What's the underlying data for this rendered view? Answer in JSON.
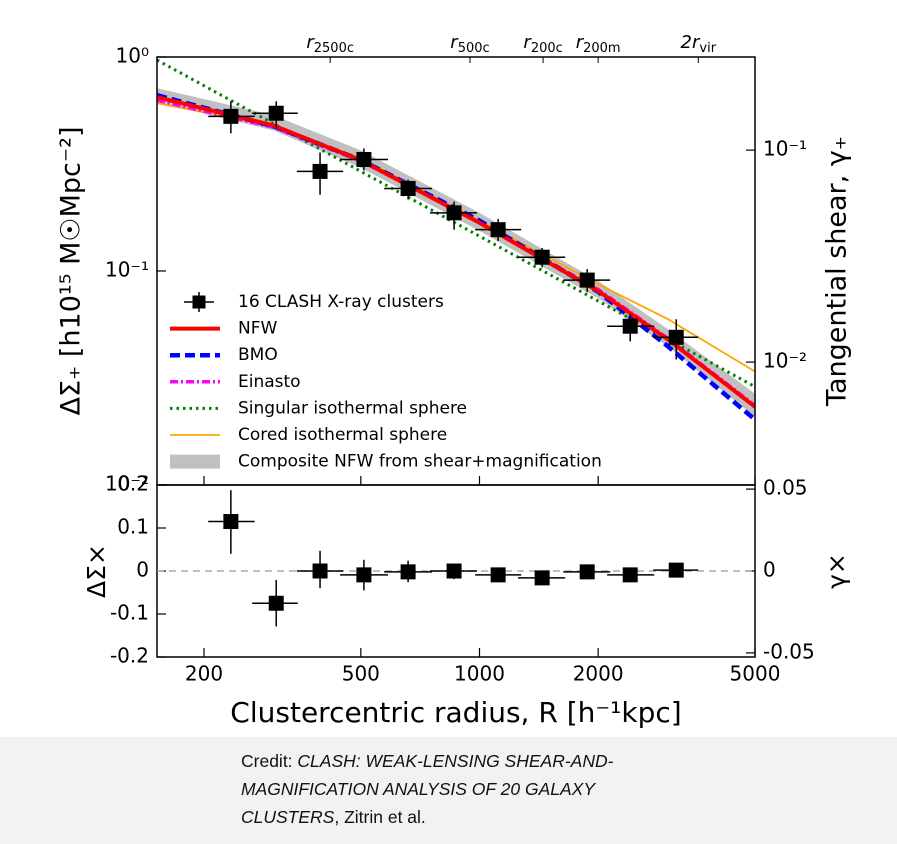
{
  "chart_data": [
    {
      "type": "line",
      "xscale": "log",
      "yscale": "log",
      "xlim": [
        152,
        5000
      ],
      "ylim": [
        0.01,
        1
      ],
      "yticks": [
        {
          "value": 1,
          "label": "10⁰"
        },
        {
          "value": 0.1,
          "label": "10⁻¹"
        },
        {
          "value": 0.01,
          "label": "10⁻²"
        }
      ],
      "y2lim": [
        0.00263,
        0.275
      ],
      "y2ticks": [
        {
          "value": 0.1,
          "label": "10⁻¹"
        },
        {
          "value": 0.01,
          "label": "10⁻²"
        }
      ],
      "ylabel": "ΔΣ₊ [h10¹⁵ M☉Mpc⁻²]",
      "y2label": "Tangential shear, γ₊",
      "top_ticks": [
        {
          "value": 418,
          "label": "r",
          "subscript": "2500c"
        },
        {
          "value": 946,
          "label": "r",
          "subscript": "500c"
        },
        {
          "value": 1450,
          "label": "r",
          "subscript": "200c"
        },
        {
          "value": 2000,
          "label": "r",
          "subscript": "200m"
        },
        {
          "value": 3590,
          "label": "2r",
          "subscript": "vir"
        }
      ],
      "legend": "lower left",
      "series": [
        {
          "name": "16 CLASH X-ray clusters",
          "color": "#000000",
          "style": "errorbar",
          "x": [
            234,
            305,
            394,
            509,
            659,
            862,
            1115,
            1442,
            1876,
            2412,
            3156
          ],
          "values": [
            0.528,
            0.546,
            0.292,
            0.332,
            0.243,
            0.187,
            0.156,
            0.116,
            0.0907,
            0.0552,
            0.049
          ],
          "x_low": [
            205,
            265,
            344,
            443,
            573,
            749,
            975,
            1253,
            1631,
            2108,
            2759
          ],
          "x_high": [
            269,
            346,
            451,
            586,
            758,
            986,
            1276,
            1650,
            2146,
            2775,
            3587
          ],
          "y_low": [
            0.44,
            0.469,
            0.227,
            0.295,
            0.216,
            0.156,
            0.138,
            0.104,
            0.0797,
            0.0469,
            0.0386
          ],
          "y_high": [
            0.621,
            0.621,
            0.358,
            0.374,
            0.267,
            0.211,
            0.175,
            0.128,
            0.102,
            0.0628,
            0.0595
          ]
        },
        {
          "name": "NFW",
          "color": "#ff0000",
          "style": "solid",
          "x": [
            152,
            300,
            500,
            1000,
            2000,
            3000,
            5000
          ],
          "values": [
            0.649,
            0.479,
            0.329,
            0.168,
            0.0806,
            0.048,
            0.0232
          ]
        },
        {
          "name": "BMO",
          "color": "#0000ff",
          "style": "dashed",
          "x": [
            152,
            300,
            500,
            1000,
            2000,
            3000,
            5000
          ],
          "values": [
            0.663,
            0.475,
            0.33,
            0.172,
            0.08,
            0.0446,
            0.0202
          ]
        },
        {
          "name": "Einasto",
          "color": "#ff00ff",
          "style": "dashdot",
          "x": [
            152,
            300,
            500,
            1000,
            2000,
            3000,
            5000
          ],
          "values": [
            0.628,
            0.47,
            0.327,
            0.168,
            0.082,
            0.0485,
            0.0235
          ]
        },
        {
          "name": "Singular isothermal sphere",
          "color": "#008000",
          "style": "dotted",
          "x": [
            152,
            5000
          ],
          "values": [
            0.968,
            0.0288
          ]
        },
        {
          "name": "Cored isothermal sphere",
          "color": "#ffa500",
          "style": "thin",
          "x": [
            152,
            300,
            500,
            1000,
            2000,
            3000,
            5000
          ],
          "values": [
            0.608,
            0.479,
            0.336,
            0.172,
            0.0868,
            0.0597,
            0.0339
          ]
        },
        {
          "name": "Composite NFW from shear+magnification",
          "color": "#c0c0c0",
          "style": "band",
          "x": [
            152,
            300,
            500,
            1000,
            2000,
            3000,
            5000
          ],
          "upper": [
            0.715,
            0.534,
            0.366,
            0.187,
            0.0899,
            0.0536,
            0.0267
          ],
          "lower": [
            0.615,
            0.454,
            0.304,
            0.154,
            0.0746,
            0.0445,
            0.0208
          ]
        }
      ]
    },
    {
      "type": "scatter",
      "xscale": "log",
      "xlim": [
        152,
        5000
      ],
      "xticks": [
        200,
        500,
        1000,
        2000,
        5000
      ],
      "xlabel": "Clustercentric radius, R [h⁻¹kpc]",
      "ylim": [
        -0.2,
        0.2
      ],
      "yticks": [
        -0.2,
        -0.1,
        0,
        0.1,
        0.2
      ],
      "y2lim": [
        -0.0525,
        0.0525
      ],
      "y2ticks": [
        -0.05,
        0,
        0.05
      ],
      "ylabel": "ΔΣ×",
      "y2label": "γ×",
      "reference_line": 0,
      "series": [
        {
          "color": "#000000",
          "style": "errorbar",
          "x": [
            234,
            305,
            394,
            509,
            659,
            862,
            1115,
            1442,
            1876,
            2412,
            3156
          ],
          "values": [
            0.115,
            -0.075,
            0,
            -0.009,
            -0.002,
            0,
            -0.009,
            -0.016,
            -0.002,
            -0.009,
            0.002
          ],
          "x_low": [
            205,
            265,
            344,
            443,
            573,
            749,
            975,
            1253,
            1631,
            2108,
            2759
          ],
          "x_high": [
            269,
            346,
            451,
            586,
            758,
            986,
            1276,
            1650,
            2146,
            2775,
            3587
          ],
          "y_low": [
            0.04,
            -0.129,
            -0.04,
            -0.045,
            -0.026,
            -0.019,
            -0.024,
            -0.028,
            -0.01,
            -0.017,
            -0.006
          ],
          "y_high": [
            0.188,
            -0.021,
            0.047,
            0.026,
            0.024,
            0.016,
            0.005,
            -0.005,
            0.006,
            -0.001,
            0.01
          ]
        }
      ]
    }
  ],
  "caption": {
    "prefix": "Credit:",
    "title": "CLASH: WEAK-LENSING SHEAR-AND-MAGNIFICATION ANALYSIS OF 20 GALAXY CLUSTERS",
    "authors": ", Zitrin et al."
  }
}
